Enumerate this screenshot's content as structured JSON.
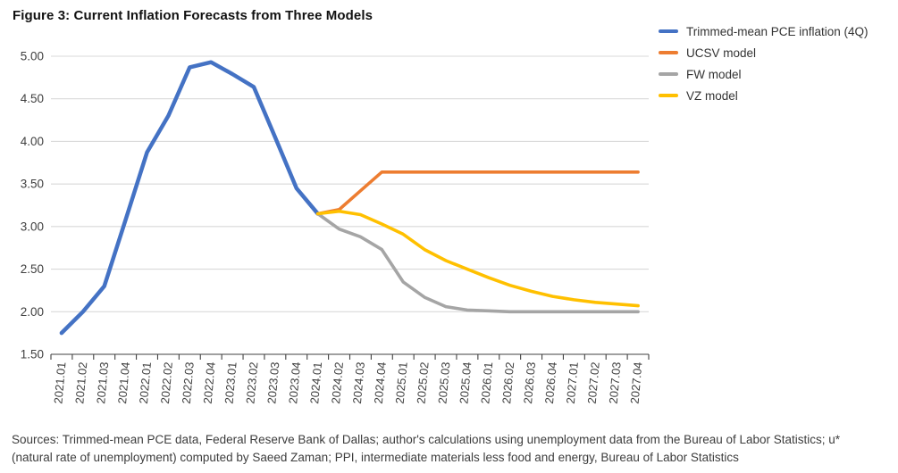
{
  "title": "Figure 3: Current Inflation Forecasts from Three Models",
  "chart_data": {
    "type": "line",
    "title": "Figure 3: Current Inflation Forecasts from Three Models",
    "xlabel": "",
    "ylabel": "",
    "ylim": [
      1.5,
      5.0
    ],
    "ytick_step": 0.5,
    "ytick_format": "two-decimals",
    "grid": "horizontal",
    "legend_position": "top-right",
    "categories": [
      "2021.01",
      "2021.02",
      "2021.03",
      "2021.04",
      "2022.01",
      "2022.02",
      "2022.03",
      "2022.04",
      "2023.01",
      "2023.02",
      "2023.03",
      "2023.04",
      "2024.01",
      "2024.02",
      "2024.03",
      "2024.04",
      "2025.01",
      "2025.02",
      "2025.03",
      "2025.04",
      "2026.01",
      "2026.02",
      "2026.03",
      "2026.04",
      "2027.01",
      "2027.02",
      "2027.03",
      "2027.04"
    ],
    "series": [
      {
        "name": "Trimmed-mean PCE inflation (4Q)",
        "color": "#4472C4",
        "values": [
          1.75,
          2.0,
          2.3,
          3.08,
          3.87,
          4.3,
          4.87,
          4.93,
          4.79,
          4.64,
          4.05,
          3.45,
          3.15,
          null,
          null,
          null,
          null,
          null,
          null,
          null,
          null,
          null,
          null,
          null,
          null,
          null,
          null,
          null
        ]
      },
      {
        "name": "UCSV model",
        "color": "#ED7D31",
        "values": [
          null,
          null,
          null,
          null,
          null,
          null,
          null,
          null,
          null,
          null,
          null,
          null,
          3.15,
          3.2,
          3.42,
          3.64,
          3.64,
          3.64,
          3.64,
          3.64,
          3.64,
          3.64,
          3.64,
          3.64,
          3.64,
          3.64,
          3.64,
          3.64
        ]
      },
      {
        "name": "FW model",
        "color": "#A5A5A5",
        "values": [
          null,
          null,
          null,
          null,
          null,
          null,
          null,
          null,
          null,
          null,
          null,
          null,
          3.15,
          2.97,
          2.88,
          2.73,
          2.35,
          2.17,
          2.06,
          2.02,
          2.01,
          2.0,
          2.0,
          2.0,
          2.0,
          2.0,
          2.0,
          2.0
        ]
      },
      {
        "name": "VZ model",
        "color": "#FFC000",
        "values": [
          null,
          null,
          null,
          null,
          null,
          null,
          null,
          null,
          null,
          null,
          null,
          null,
          3.15,
          3.18,
          3.14,
          3.03,
          2.91,
          2.73,
          2.6,
          2.5,
          2.4,
          2.31,
          2.24,
          2.18,
          2.14,
          2.11,
          2.09,
          2.07
        ]
      }
    ],
    "colors": {
      "gridline": "#D9D9D9",
      "axis": "#404040",
      "tick_label": "#404040"
    }
  },
  "sources": {
    "line1": "Sources: Trimmed-mean PCE data, Federal Reserve Bank of Dallas; author's calculations using unemployment data from the Bureau of Labor Statistics; u*",
    "line2": "(natural rate of unemployment) computed by Saeed Zaman; PPI, intermediate materials less food and energy, Bureau of Labor Statistics"
  }
}
